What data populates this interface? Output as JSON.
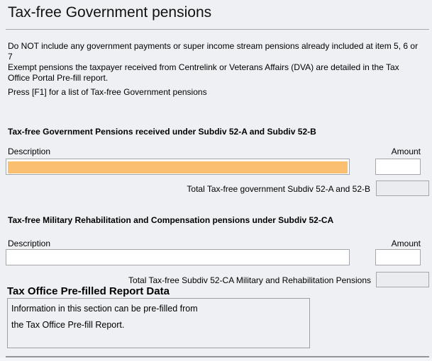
{
  "page": {
    "title": "Tax-free Government pensions",
    "instructions": [
      "Do NOT include any government payments or super income stream pensions already included at item 5, 6 or 7",
      "Exempt pensions the taxpayer received from Centrelink or Veterans Affairs (DVA) are detailed in the Tax Office Portal Pre-fill report.",
      "Press [F1] for a list of Tax-free Government pensions"
    ]
  },
  "section_govt": {
    "heading": "Tax-free Government Pensions received under Subdiv 52-A and Subdiv 52-B",
    "description_label": "Description",
    "amount_label": "Amount",
    "description_value": "",
    "amount_value": "",
    "total_label": "Total Tax-free government Subdiv 52-A and 52-B",
    "total_value": ""
  },
  "section_military": {
    "heading": "Tax-free Military Rehabilitation and Compensation pensions under Subdiv 52-CA",
    "description_label": "Description",
    "amount_label": "Amount",
    "description_value": "",
    "amount_value": "",
    "total_label": "Total Tax-free Subdiv 52-CA Military and Rehabilitation Pensions",
    "total_value": ""
  },
  "prefill": {
    "heading": "Tax Office Pre-filled Report Data",
    "body_line1": "Information in this section can be pre-filled from",
    "body_line2": "the Tax Office Pre-fill Report."
  },
  "colors": {
    "focus_highlight": "#fbbf70",
    "page_background": "#eef0f4",
    "readonly_field": "#eaecf0",
    "field_border": "#a3a7ab"
  }
}
